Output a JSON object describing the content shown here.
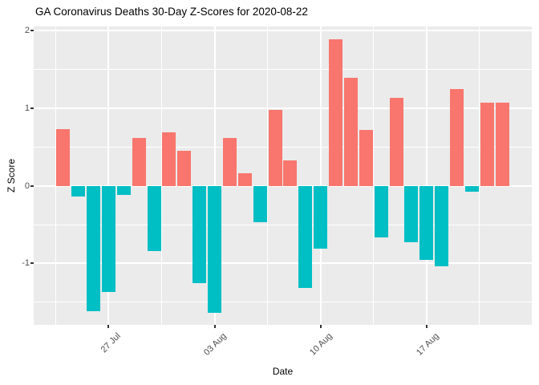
{
  "title": "GA Coronavirus Deaths 30-Day Z-Scores for 2020-08-22",
  "chart_data": {
    "type": "bar",
    "title": "GA Coronavirus Deaths 30-Day Z-Scores for 2020-08-22",
    "xlabel": "Date",
    "ylabel": "Z Score",
    "ylim": [
      -1.79,
      2.05
    ],
    "y_major_ticks": [
      2,
      1,
      0,
      -1
    ],
    "y_minor_ticks": [
      1.5,
      0.5,
      -0.5,
      -1.5
    ],
    "x_ticks": [
      {
        "label": "27 Jul",
        "day_index": 3
      },
      {
        "label": "03 Aug",
        "day_index": 10
      },
      {
        "label": "10 Aug",
        "day_index": 17
      },
      {
        "label": "17 Aug",
        "day_index": 24
      }
    ],
    "x_minor_day_indices": [
      -0.5,
      6.5,
      13.5,
      20.5,
      27.5
    ],
    "x_major_extra_day_indices": [
      31
    ],
    "grid": true,
    "legend": "none",
    "categories": [
      "2020-07-24",
      "2020-07-25",
      "2020-07-26",
      "2020-07-27",
      "2020-07-28",
      "2020-07-29",
      "2020-07-30",
      "2020-07-31",
      "2020-08-01",
      "2020-08-02",
      "2020-08-03",
      "2020-08-04",
      "2020-08-05",
      "2020-08-06",
      "2020-08-07",
      "2020-08-08",
      "2020-08-09",
      "2020-08-10",
      "2020-08-11",
      "2020-08-12",
      "2020-08-13",
      "2020-08-14",
      "2020-08-15",
      "2020-08-16",
      "2020-08-17",
      "2020-08-18",
      "2020-08-19",
      "2020-08-20",
      "2020-08-21",
      "2020-08-22"
    ],
    "values": [
      0.73,
      -0.14,
      -1.61,
      -1.37,
      -0.12,
      0.62,
      -0.84,
      0.69,
      0.45,
      -1.25,
      -1.63,
      0.62,
      0.16,
      -0.47,
      0.98,
      0.33,
      -1.32,
      -0.81,
      1.89,
      1.39,
      0.72,
      -0.66,
      1.13,
      -0.73,
      -0.95,
      -1.04,
      1.24,
      -0.08,
      1.07,
      1.07
    ],
    "colors": {
      "positive_bar": "#F8766D",
      "negative_bar": "#00BFC4",
      "panel_background": "#EBEBEB",
      "gridline": "#FFFFFF",
      "tick_label_text": "#4D4D4D",
      "tick_mark": "#333333",
      "title_text": "#000000"
    }
  }
}
